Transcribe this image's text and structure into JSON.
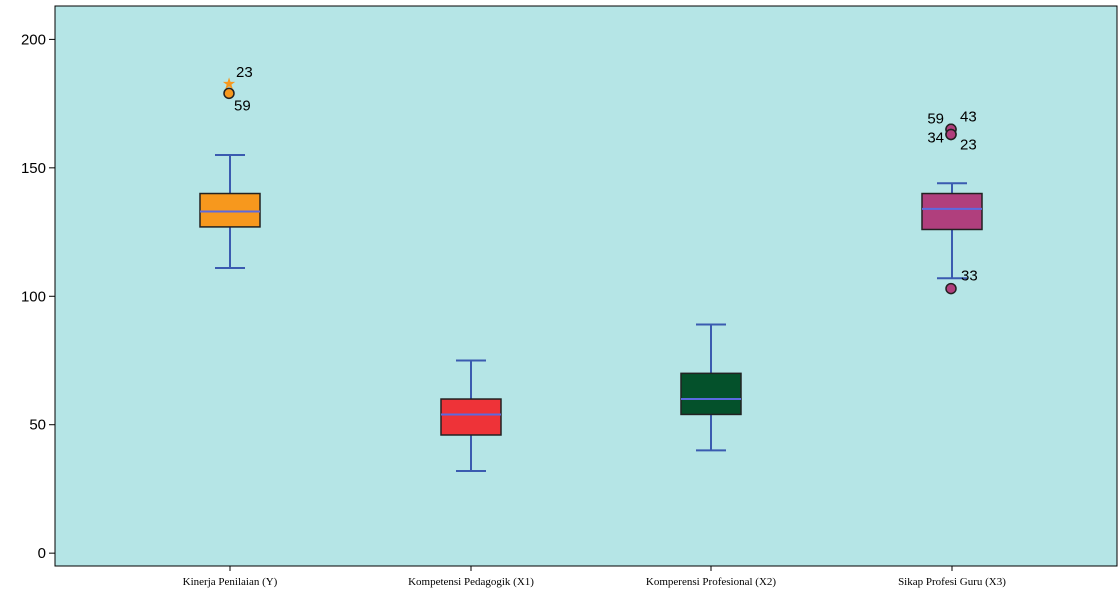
{
  "chart_data": {
    "type": "boxplot",
    "title": "",
    "xlabel": "",
    "ylabel": "",
    "ylim": [
      -5,
      213
    ],
    "yticks": [
      0,
      50,
      100,
      150,
      200
    ],
    "grid": false,
    "legend": "none",
    "plot_background": "#b5e5e6",
    "whisker_color": "#3a5bb0",
    "median_color": "#5b6ae0",
    "categories": [
      {
        "name": "Kinerja Penilaian (Y)",
        "color": "#f7981d",
        "min": 111,
        "q1": 127,
        "median": 133,
        "q3": 140,
        "max": 155,
        "outliers": [
          {
            "value": 183,
            "kind": "extreme",
            "label": "23"
          },
          {
            "value": 179,
            "kind": "outlier",
            "label": "59"
          }
        ]
      },
      {
        "name": "Kompetensi Pedagogik (X1)",
        "color": "#ee3338",
        "min": 32,
        "q1": 46,
        "median": 54,
        "q3": 60,
        "max": 75,
        "outliers": []
      },
      {
        "name": "Komperensi Profesional (X2)",
        "color": "#04512b",
        "min": 40,
        "q1": 54,
        "median": 60,
        "q3": 70,
        "max": 89,
        "outliers": []
      },
      {
        "name": "Sikap Profesi Guru (X3)",
        "color": "#b03f7d",
        "min": 107,
        "q1": 126,
        "median": 134,
        "q3": 140,
        "max": 144,
        "outliers": [
          {
            "value": 165,
            "kind": "outlier",
            "label": "59"
          },
          {
            "value": 165,
            "kind": "outlier",
            "label": "43"
          },
          {
            "value": 163,
            "kind": "outlier",
            "label": "34"
          },
          {
            "value": 163,
            "kind": "outlier",
            "label": "23"
          },
          {
            "value": 103,
            "kind": "outlier",
            "label": "33"
          }
        ]
      }
    ]
  }
}
